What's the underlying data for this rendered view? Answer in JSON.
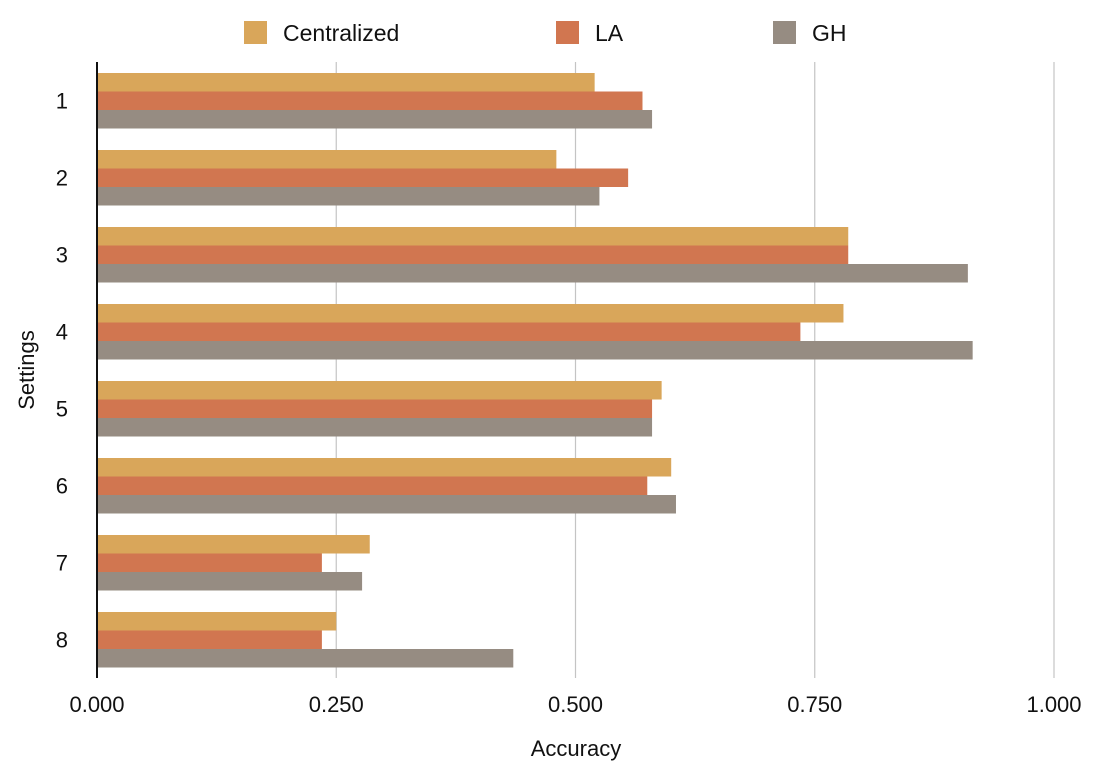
{
  "chart_data": {
    "type": "bar",
    "orientation": "horizontal",
    "title": "",
    "xlabel": "Accuracy",
    "ylabel": "Settings",
    "xlim": [
      0,
      1
    ],
    "x_ticks": [
      "0.000",
      "0.250",
      "0.500",
      "0.750",
      "1.000"
    ],
    "grid": true,
    "legend_position": "top",
    "categories": [
      "1",
      "2",
      "3",
      "4",
      "5",
      "6",
      "7",
      "8"
    ],
    "series": [
      {
        "name": "Centralized",
        "color": "#d9a65a",
        "values": [
          0.52,
          0.48,
          0.785,
          0.78,
          0.59,
          0.6,
          0.285,
          0.25
        ]
      },
      {
        "name": "LA",
        "color": "#d17650",
        "values": [
          0.57,
          0.555,
          0.785,
          0.735,
          0.58,
          0.575,
          0.235,
          0.235
        ]
      },
      {
        "name": "GH",
        "color": "#968c82",
        "values": [
          0.58,
          0.525,
          0.91,
          0.915,
          0.58,
          0.605,
          0.277,
          0.435
        ]
      }
    ]
  }
}
